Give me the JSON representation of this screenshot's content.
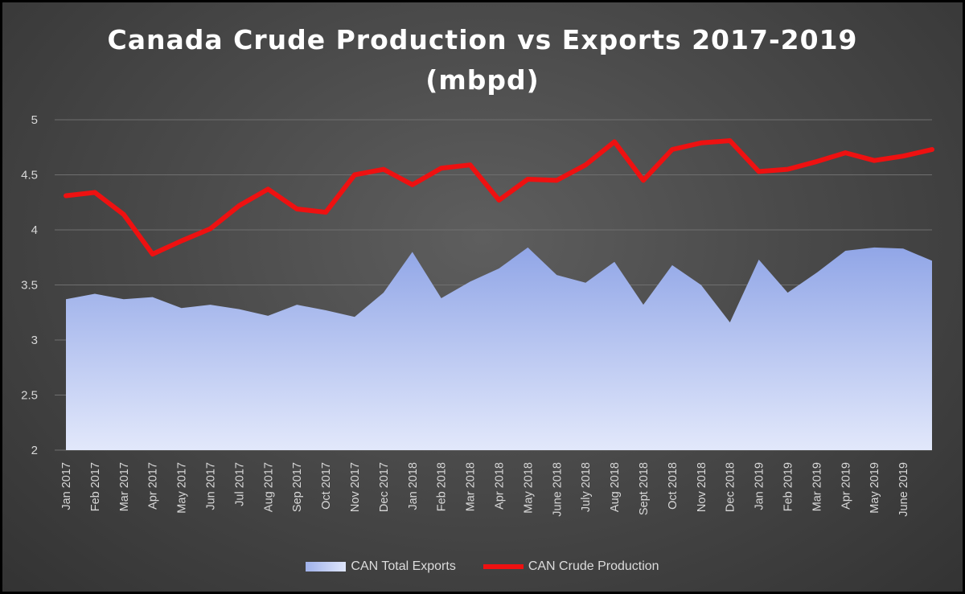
{
  "chart_data": {
    "type": "area",
    "title": "Canada Crude Production vs Exports 2017-2019",
    "subtitle": "(mbpd)",
    "categories": [
      "Jan 2017",
      "Feb 2017",
      "Mar 2017",
      "Apr 2017",
      "May 2017",
      "Jun 2017",
      "Jul 2017",
      "Aug 2017",
      "Sep 2017",
      "Oct 2017",
      "Nov 2017",
      "Dec 2017",
      "Jan 2018",
      "Feb 2018",
      "Mar 2018",
      "Apr 2018",
      "May 2018",
      "June 2018",
      "July 2018",
      "Aug 2018",
      "Sept 2018",
      "Oct 2018",
      "Nov 2018",
      "Dec 2018",
      "Jan 2019",
      "Feb 2019",
      "Mar 2019",
      "Apr 2019",
      "May 2019",
      "June 2019",
      ""
    ],
    "series": [
      {
        "name": "CAN Total Exports",
        "type": "area",
        "color": "#9fb1ea",
        "values": [
          3.37,
          3.42,
          3.37,
          3.39,
          3.29,
          3.32,
          3.28,
          3.22,
          3.32,
          3.27,
          3.21,
          3.43,
          3.8,
          3.38,
          3.53,
          3.65,
          3.84,
          3.59,
          3.52,
          3.71,
          3.32,
          3.68,
          3.5,
          3.16,
          3.73,
          3.43,
          3.61,
          3.81,
          3.84,
          3.83,
          3.72
        ]
      },
      {
        "name": "CAN Crude Production",
        "type": "line",
        "color": "#ee1111",
        "values": [
          4.31,
          4.34,
          4.14,
          3.78,
          3.9,
          4.01,
          4.22,
          4.37,
          4.19,
          4.16,
          4.5,
          4.55,
          4.41,
          4.56,
          4.59,
          4.27,
          4.46,
          4.45,
          4.59,
          4.8,
          4.45,
          4.73,
          4.79,
          4.81,
          4.53,
          4.55,
          4.62,
          4.7,
          4.63,
          4.67,
          4.73
        ]
      }
    ],
    "ylim": [
      2,
      5
    ],
    "yticks": [
      "5",
      "4.5",
      "4",
      "3.5",
      "3",
      "2.5",
      "2"
    ],
    "grid": true,
    "legend": "bottom"
  }
}
